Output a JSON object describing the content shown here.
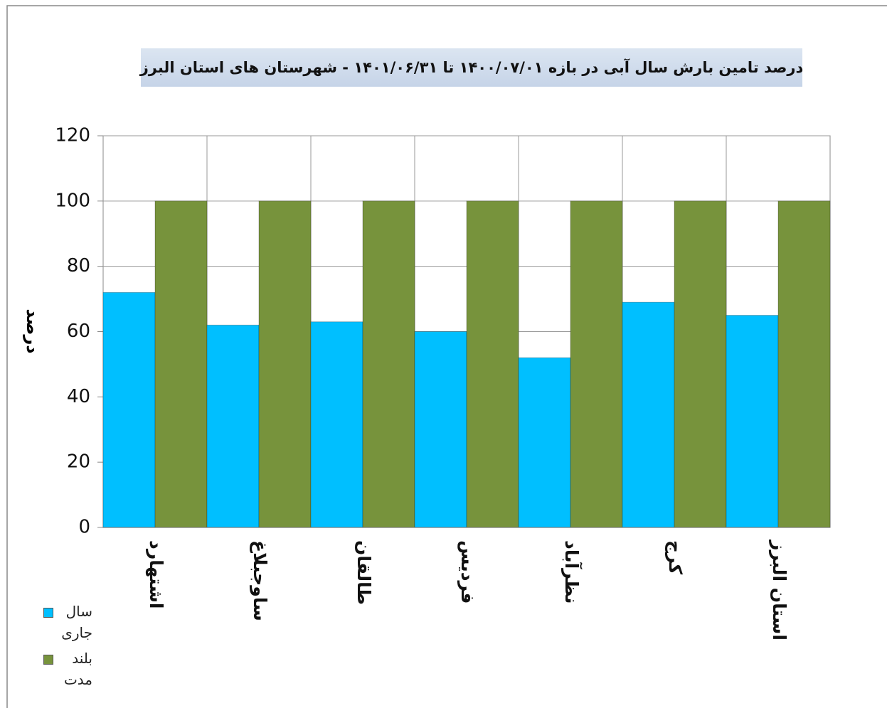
{
  "chart_data": {
    "type": "bar",
    "title": "درصد تامین بارش سال آبی در بازه  ۱۴۰۰/۰۷/۰۱ تا ۱۴۰۱/۰۶/۳۱  - شهرستان های استان البرز",
    "y_label": "درصد",
    "categories": [
      "اشتهارد",
      "ساوجبلاغ",
      "طالقان",
      "فردیس",
      "نظرآباد",
      "کرج",
      "استان البرز"
    ],
    "series": [
      {
        "name": "سال جاری",
        "color": "#00bfff",
        "values": [
          72,
          62,
          63,
          60,
          52,
          69,
          65
        ]
      },
      {
        "name": "بلند مدت",
        "color": "#77933c",
        "values": [
          100,
          100,
          100,
          100,
          100,
          100,
          100
        ]
      }
    ],
    "ylim": [
      0,
      120
    ],
    "yticks": [
      0,
      20,
      40,
      60,
      80,
      100,
      120
    ],
    "grid": true
  }
}
